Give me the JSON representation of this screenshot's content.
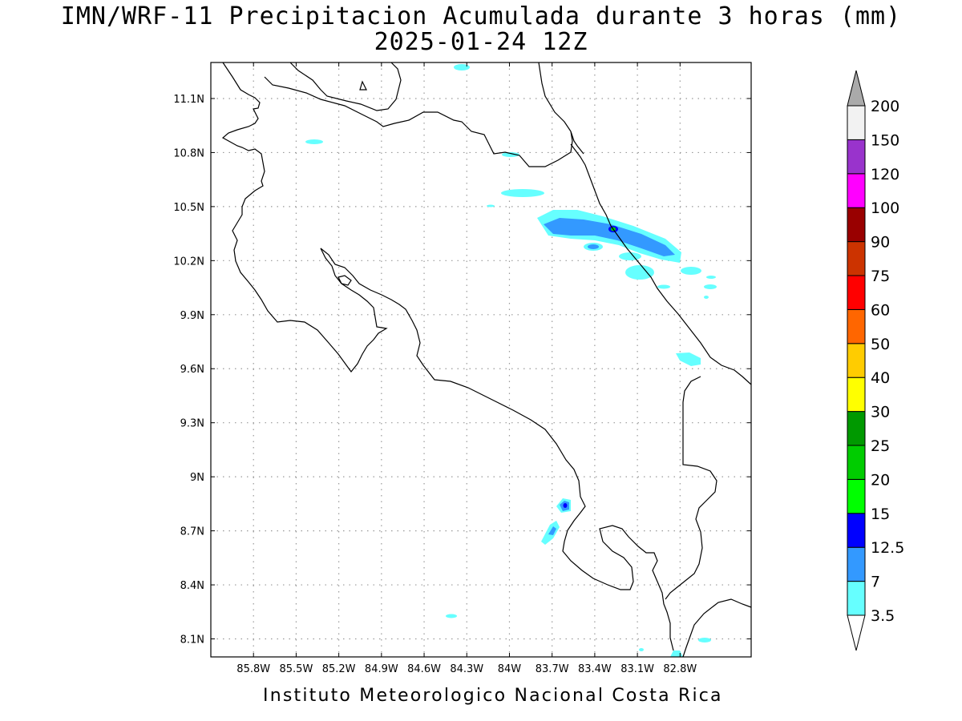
{
  "title": {
    "line1": "IMN/WRF-11 Precipitacion Acumulada durante 3 horas (mm)",
    "line2": "2025-01-24 12Z"
  },
  "footer": "Instituto Meteorologico Nacional Costa Rica",
  "map": {
    "lon_range": [
      -86.1,
      -82.3
    ],
    "lat_range": [
      8.0,
      11.3
    ],
    "lon_ticks": [
      {
        "v": -85.8,
        "label": "85.8W"
      },
      {
        "v": -85.5,
        "label": "85.5W"
      },
      {
        "v": -85.2,
        "label": "85.2W"
      },
      {
        "v": -84.9,
        "label": "84.9W"
      },
      {
        "v": -84.6,
        "label": "84.6W"
      },
      {
        "v": -84.3,
        "label": "84.3W"
      },
      {
        "v": -84.0,
        "label": "84W"
      },
      {
        "v": -83.7,
        "label": "83.7W"
      },
      {
        "v": -83.4,
        "label": "83.4W"
      },
      {
        "v": -83.1,
        "label": "83.1W"
      },
      {
        "v": -82.8,
        "label": "82.8W"
      }
    ],
    "lat_ticks": [
      {
        "v": 11.1,
        "label": "11.1N"
      },
      {
        "v": 10.8,
        "label": "10.8N"
      },
      {
        "v": 10.5,
        "label": "10.5N"
      },
      {
        "v": 10.2,
        "label": "10.2N"
      },
      {
        "v": 9.9,
        "label": "9.9N"
      },
      {
        "v": 9.6,
        "label": "9.6N"
      },
      {
        "v": 9.3,
        "label": "9.3N"
      },
      {
        "v": 9.0,
        "label": "9N"
      },
      {
        "v": 8.7,
        "label": "8.7N"
      },
      {
        "v": 8.4,
        "label": "8.4N"
      },
      {
        "v": 8.1,
        "label": "8.1N"
      }
    ],
    "grid": true
  },
  "colorbar": {
    "labels": [
      "3.5",
      "7",
      "12.5",
      "15",
      "20",
      "25",
      "30",
      "40",
      "50",
      "60",
      "75",
      "90",
      "100",
      "120",
      "150",
      "200"
    ],
    "colors": [
      "#66ffff",
      "#3399ff",
      "#0000ff",
      "#00ff00",
      "#00cc00",
      "#009900",
      "#ffff00",
      "#ffcc00",
      "#ff6600",
      "#ff0000",
      "#cc3300",
      "#990000",
      "#ff00ff",
      "#9933cc",
      "#f2f2f2",
      "#aaaaaa",
      "#ffffff"
    ],
    "over_color": "#aaaaaa",
    "under_color": "#ffffff"
  }
}
